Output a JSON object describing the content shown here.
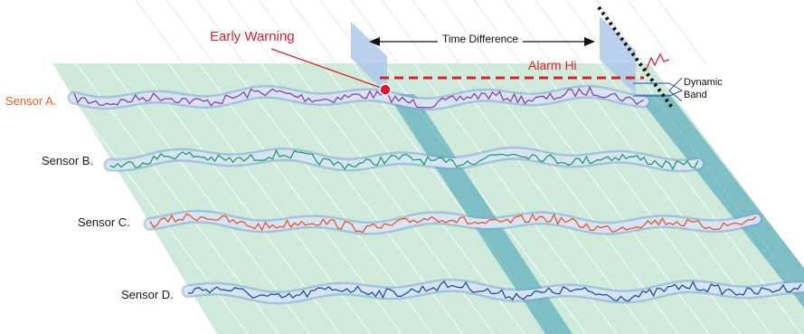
{
  "labels": {
    "early_warning": "Early Warning",
    "time_difference": "Time Difference",
    "alarm_hi": "Alarm Hi",
    "dynamic_band": "Dynamic Band"
  },
  "sensors": [
    {
      "name": "Sensor A.",
      "signal_color": "#8e3fb0",
      "label_color": "#e8601c"
    },
    {
      "name": "Sensor B.",
      "signal_color": "#1fa05a",
      "label_color": "#1a1a1a"
    },
    {
      "name": "Sensor C.",
      "signal_color": "#ee5520",
      "label_color": "#1a1a1a"
    },
    {
      "name": "Sensor D.",
      "signal_color": "#1d4fa8",
      "label_color": "#1a1a1a"
    }
  ],
  "colors": {
    "plane": "#cfeadb",
    "band_tube": "#bcd3ee",
    "time_slice": "#3b9bb0",
    "alarm_line": "#d7222a",
    "warning_text": "#d7222a",
    "burst": "#f5b50d"
  }
}
